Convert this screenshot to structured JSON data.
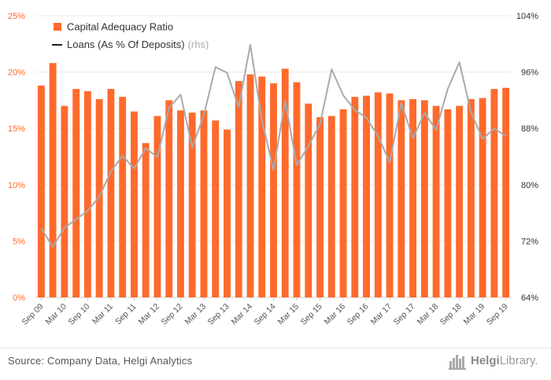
{
  "chart_data": {
    "type": "bar+line",
    "title": "",
    "categories": [
      "Sep 09",
      "Dec 09",
      "Mar 10",
      "Jun 10",
      "Sep 10",
      "Dec 10",
      "Mar 11",
      "Jun 11",
      "Sep 11",
      "Dec 11",
      "Mar 12",
      "Jun 12",
      "Sep 12",
      "Dec 12",
      "Mar 13",
      "Jun 13",
      "Sep 13",
      "Dec 13",
      "Mar 14",
      "Jun 14",
      "Sep 14",
      "Dec 14",
      "Mar 15",
      "Jun 15",
      "Sep 15",
      "Dec 15",
      "Mar 16",
      "Jun 16",
      "Sep 16",
      "Dec 16",
      "Mar 17",
      "Jun 17",
      "Sep 17",
      "Dec 17",
      "Mar 18",
      "Jun 18",
      "Sep 18",
      "Dec 18",
      "Mar 19",
      "Jun 19",
      "Sep 19"
    ],
    "x_tick_labels": [
      "Sep 09",
      "Mar 10",
      "Sep 10",
      "Mar 11",
      "Sep 11",
      "Mar 12",
      "Sep 12",
      "Mar 13",
      "Sep 13",
      "Mar 14",
      "Sep 14",
      "Mar 15",
      "Sep 15",
      "Mar 16",
      "Sep 16",
      "Mar 17",
      "Sep 17",
      "Mar 18",
      "Sep 18",
      "Mar 19",
      "Sep 19"
    ],
    "series": [
      {
        "name": "Capital Adequacy Ratio",
        "type": "bar",
        "axis": "left",
        "color": "#ff6a2c",
        "values": [
          18.8,
          20.8,
          17.0,
          18.5,
          18.3,
          17.6,
          18.5,
          17.8,
          16.5,
          13.7,
          16.1,
          17.5,
          16.6,
          16.4,
          16.6,
          15.7,
          14.9,
          19.2,
          19.8,
          19.6,
          19.0,
          20.3,
          19.1,
          17.2,
          16.0,
          16.1,
          16.7,
          17.8,
          17.9,
          18.2,
          18.1,
          17.5,
          17.6,
          17.5,
          17.0,
          16.7,
          17.0,
          17.6,
          17.7,
          18.5,
          18.6
        ]
      },
      {
        "name": "Loans (As % Of Deposits)",
        "name_suffix": "(rhs)",
        "type": "line",
        "axis": "right",
        "color": "#aaaaaa",
        "values": [
          73.8,
          71.2,
          73.9,
          75.1,
          76.3,
          78.3,
          81.9,
          84.1,
          82.3,
          85.2,
          83.9,
          90.9,
          92.8,
          85.3,
          89.9,
          96.7,
          95.9,
          91.0,
          99.9,
          89.2,
          82.1,
          91.9,
          82.8,
          85.5,
          88.6,
          96.4,
          92.7,
          90.6,
          89.5,
          86.9,
          83.2,
          91.6,
          86.6,
          90.2,
          87.8,
          93.6,
          97.4,
          90.3,
          86.5,
          88.0,
          86.9
        ]
      }
    ],
    "y_left": {
      "ylim": [
        0,
        25
      ],
      "ticks": [
        "0%",
        "5%",
        "10%",
        "15%",
        "20%",
        "25%"
      ],
      "tick_values": [
        0,
        5,
        10,
        15,
        20,
        25
      ],
      "color": "#ff6a2c"
    },
    "y_right": {
      "ylim": [
        64,
        104
      ],
      "ticks": [
        "64%",
        "72%",
        "80%",
        "88%",
        "96%",
        "104%"
      ],
      "tick_values": [
        64,
        72,
        80,
        88,
        96,
        104
      ],
      "color": "#333333"
    },
    "grid": true,
    "legend_position": "top-left"
  },
  "footer": {
    "source": "Source: Company Data, Helgi Analytics",
    "brand_bold": "Helgi",
    "brand_light": "Library."
  }
}
